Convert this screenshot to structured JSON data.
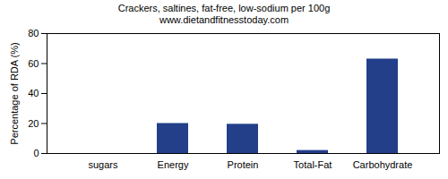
{
  "chart_data": {
    "type": "bar",
    "title": "Crackers, saltines, fat-free, low-sodium per 100g",
    "subtitle": "www.dietandfitnesstoday.com",
    "y_label": "Percentage of RDA (%)",
    "categories": [
      "sugars",
      "Energy",
      "Protein",
      "Total-Fat",
      "Carbohydrate"
    ],
    "values": [
      0,
      20,
      19.5,
      2,
      63
    ],
    "color": "#233f8a",
    "ylim": [
      0,
      80
    ],
    "yticks": [
      0,
      20,
      40,
      60,
      80
    ],
    "grid": false
  }
}
